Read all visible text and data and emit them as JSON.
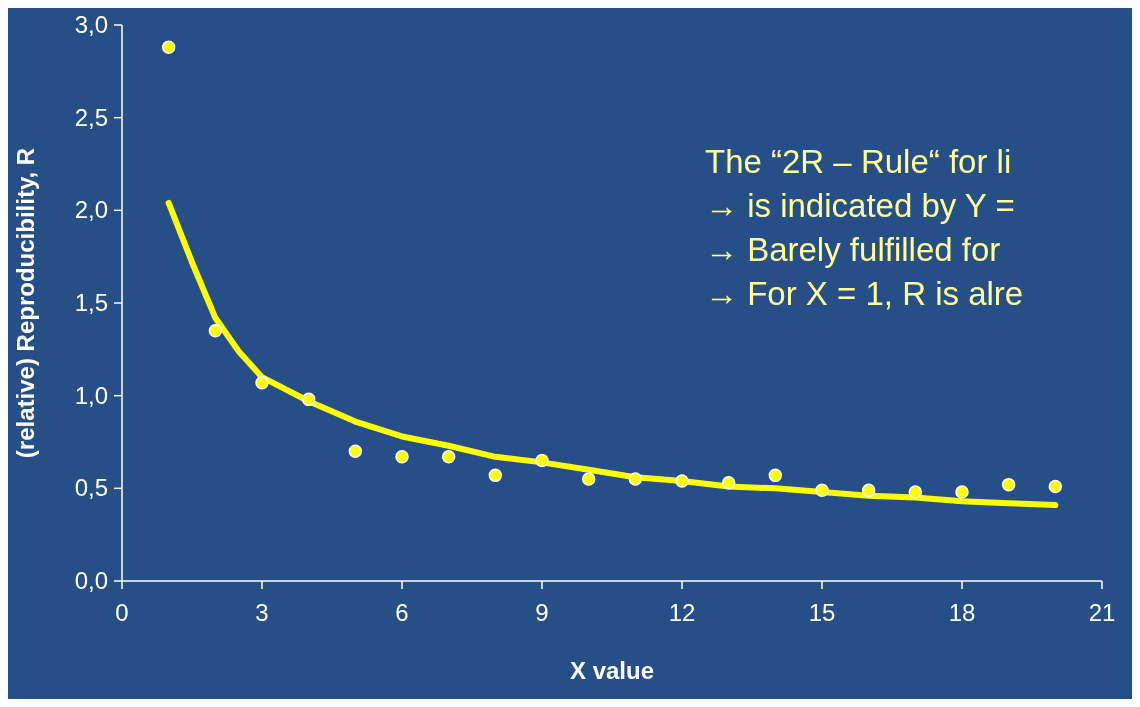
{
  "chart_data": {
    "type": "scatter",
    "xlabel": "X value",
    "ylabel": "(relative) Reproducibility, R",
    "xlim": [
      0,
      21
    ],
    "xticks": [
      0,
      3,
      6,
      9,
      12,
      15,
      18,
      21
    ],
    "ylim": [
      0,
      3
    ],
    "yticks": [
      {
        "value": 0,
        "label": "0,0"
      },
      {
        "value": 0.5,
        "label": "0,5"
      },
      {
        "value": 1,
        "label": "1,0"
      },
      {
        "value": 1.5,
        "label": "1,5"
      },
      {
        "value": 2,
        "label": "2,0"
      },
      {
        "value": 2.5,
        "label": "2,5"
      },
      {
        "value": 3,
        "label": "3,0"
      }
    ],
    "grid": false,
    "series": [
      {
        "marker": "circle",
        "color": "#ffff00",
        "x": [
          1,
          2,
          3,
          4,
          5,
          6,
          7,
          8,
          9,
          10,
          11,
          12,
          13,
          14,
          15,
          16,
          17,
          18,
          19,
          20
        ],
        "values": [
          2.88,
          1.35,
          1.07,
          0.98,
          0.7,
          0.67,
          0.67,
          0.57,
          0.65,
          0.55,
          0.55,
          0.54,
          0.53,
          0.57,
          0.49,
          0.49,
          0.48,
          0.48,
          0.52,
          0.51
        ]
      },
      {
        "type": "line",
        "marker": "none",
        "color": "#ffff00",
        "x": [
          1,
          1.5,
          2,
          2.5,
          3,
          4,
          5,
          6,
          7,
          8,
          9,
          10,
          11,
          12,
          13,
          14,
          15,
          16,
          17,
          18,
          19,
          20
        ],
        "values": [
          2.04,
          1.72,
          1.42,
          1.24,
          1.1,
          0.97,
          0.86,
          0.78,
          0.73,
          0.67,
          0.64,
          0.6,
          0.56,
          0.54,
          0.51,
          0.5,
          0.48,
          0.46,
          0.45,
          0.43,
          0.42,
          0.41
        ]
      }
    ],
    "annotations": [
      "The “2R – Rule“ for li",
      "→ is indicated by  Y =",
      "→ Barely fulfilled for",
      "→ For X = 1, R is alre"
    ]
  }
}
